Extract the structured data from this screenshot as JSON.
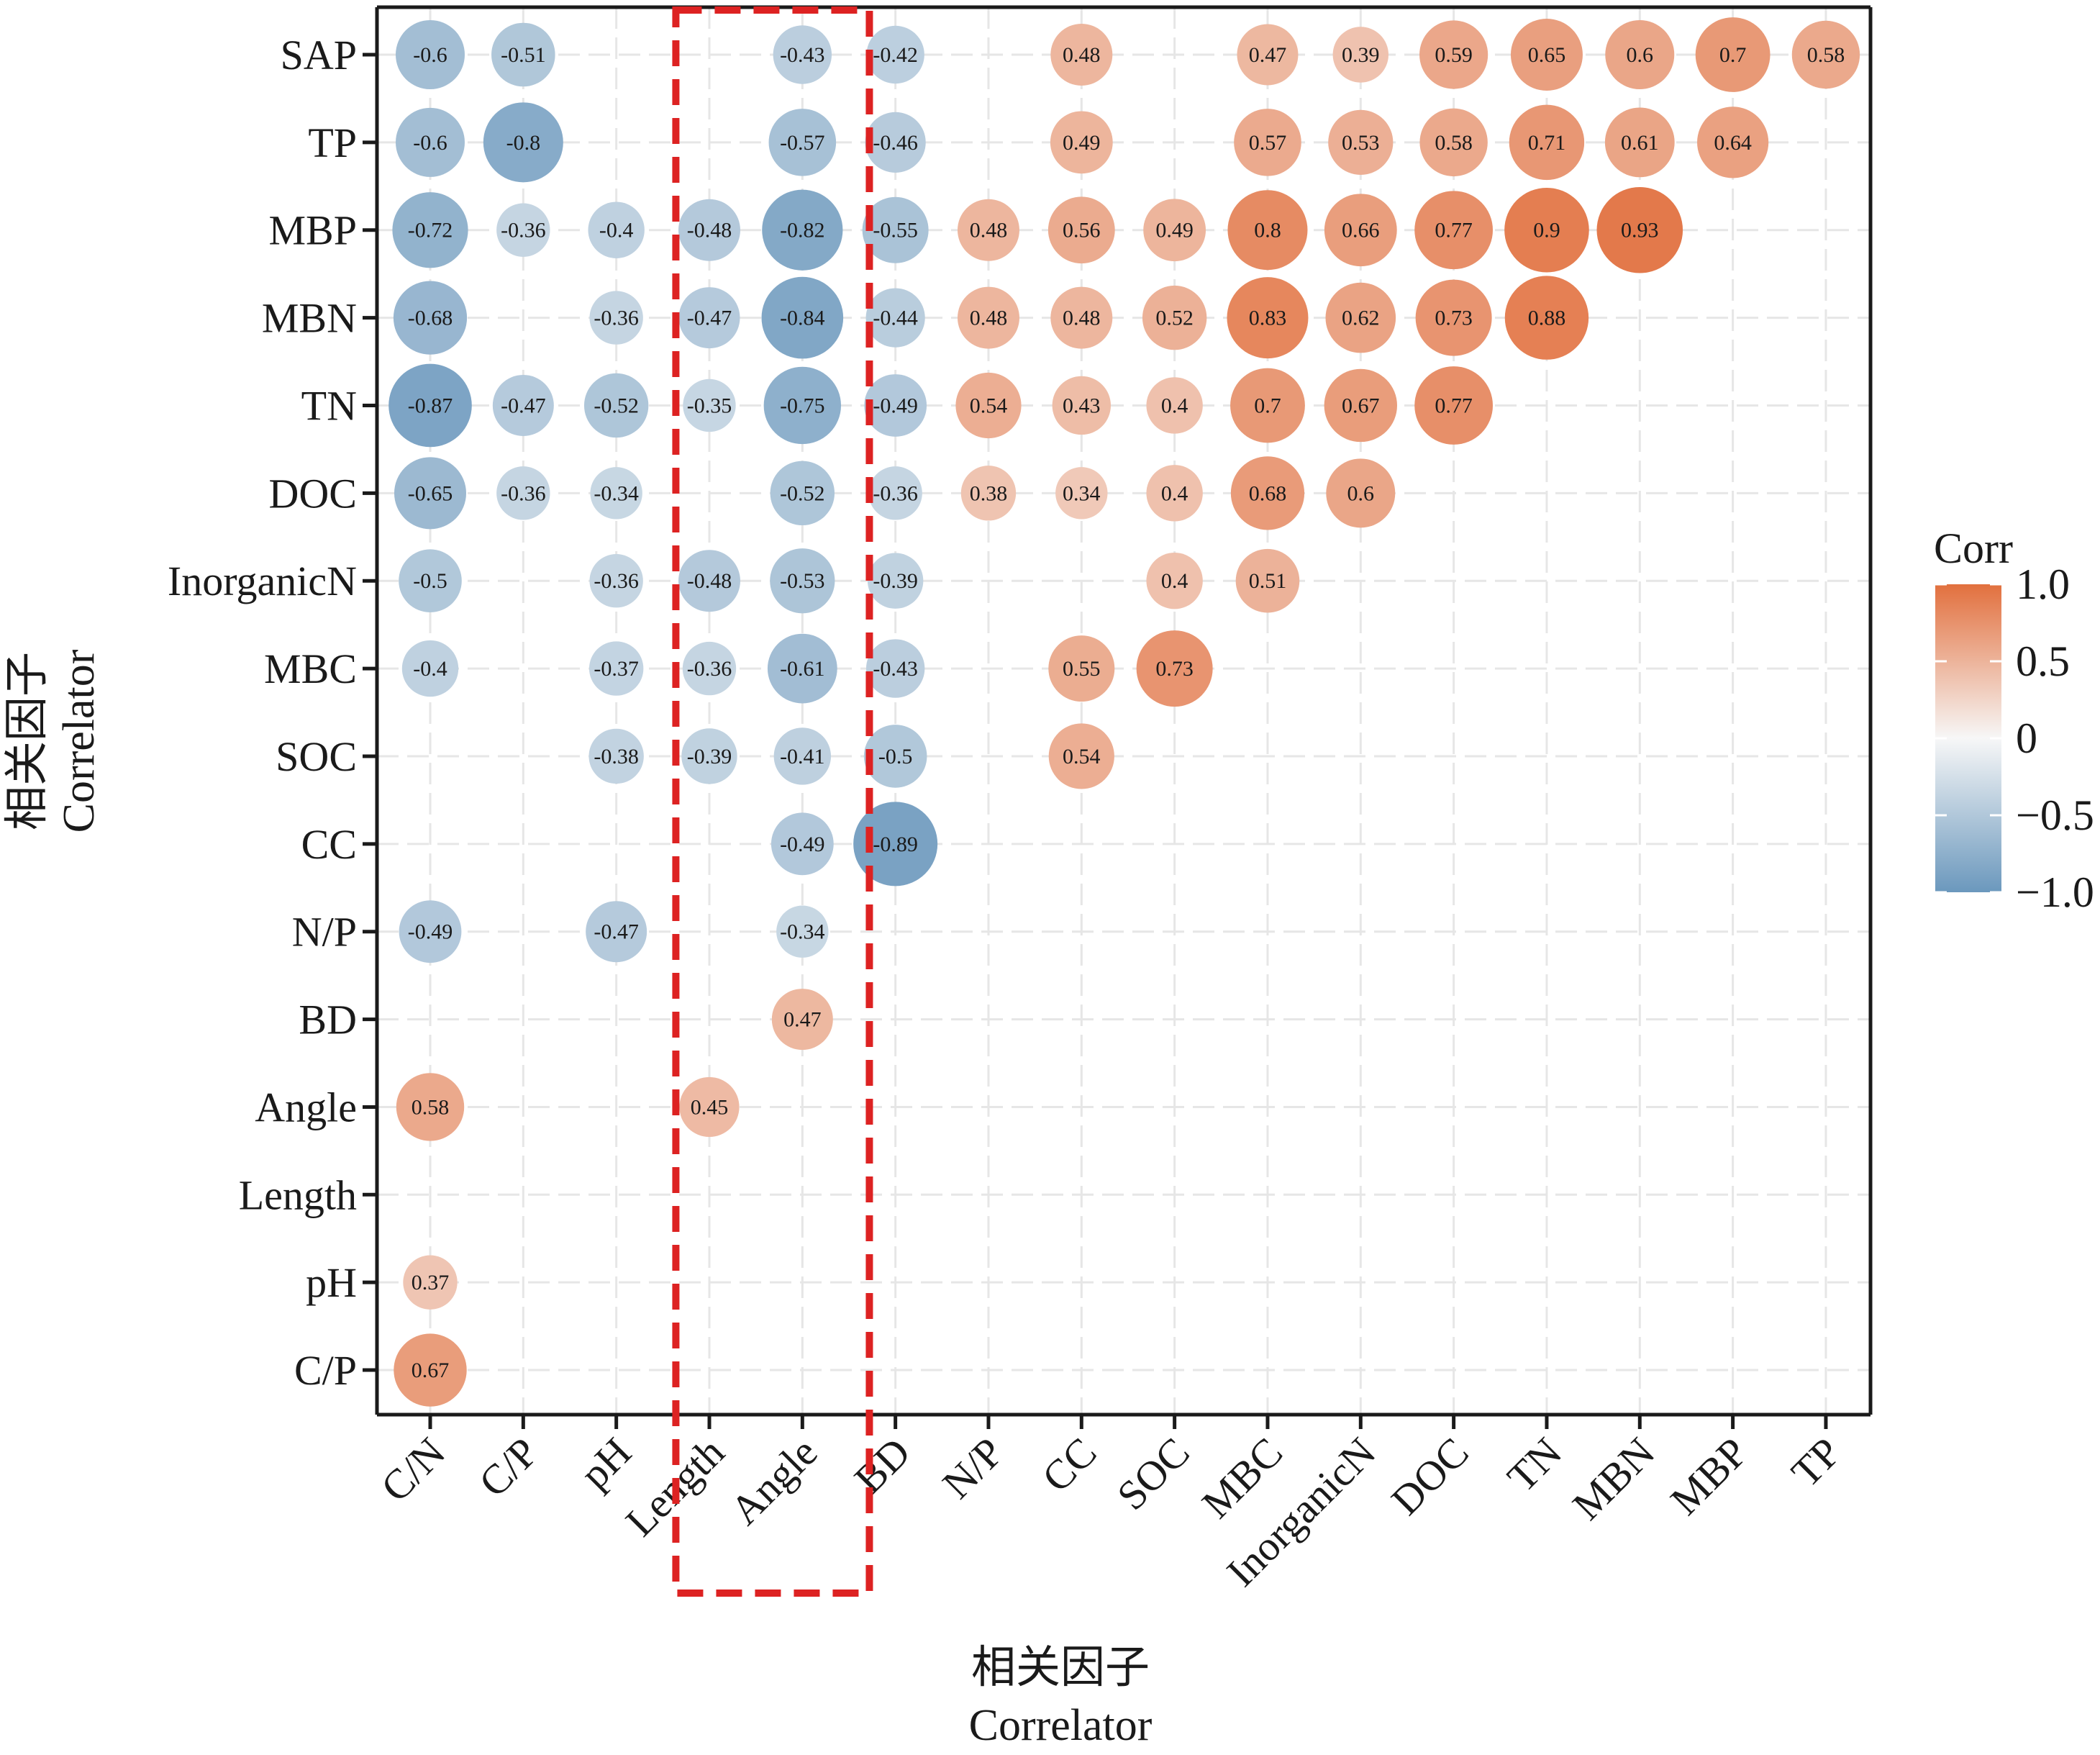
{
  "chart_data": {
    "type": "heatmap",
    "subtype": "correlation-bubble-lower-triangle",
    "x_categories": [
      "C/N",
      "C/P",
      "pH",
      "Length",
      "Angle",
      "BD",
      "N/P",
      "CC",
      "SOC",
      "MBC",
      "InorganicN",
      "DOC",
      "TN",
      "MBN",
      "MBP",
      "TP"
    ],
    "y_categories": [
      "SAP",
      "TP",
      "MBP",
      "MBN",
      "TN",
      "DOC",
      "InorganicN",
      "MBC",
      "SOC",
      "CC",
      "N/P",
      "BD",
      "Angle",
      "Length",
      "pH",
      "C/P"
    ],
    "values": [
      [
        -0.6,
        -0.51,
        null,
        null,
        -0.43,
        -0.42,
        null,
        0.48,
        null,
        0.47,
        0.39,
        0.59,
        0.65,
        0.6,
        0.7,
        0.58
      ],
      [
        -0.6,
        -0.8,
        null,
        null,
        -0.57,
        -0.46,
        null,
        0.49,
        null,
        0.57,
        0.53,
        0.58,
        0.71,
        0.61,
        0.64,
        null
      ],
      [
        -0.72,
        -0.36,
        -0.4,
        -0.48,
        -0.82,
        -0.55,
        0.48,
        0.56,
        0.49,
        0.8,
        0.66,
        0.77,
        0.9,
        0.93,
        null,
        null
      ],
      [
        -0.68,
        null,
        -0.36,
        -0.47,
        -0.84,
        -0.44,
        0.48,
        0.48,
        0.52,
        0.83,
        0.62,
        0.73,
        0.88,
        null,
        null,
        null
      ],
      [
        -0.87,
        -0.47,
        -0.52,
        -0.35,
        -0.75,
        -0.49,
        0.54,
        0.43,
        0.4,
        0.7,
        0.67,
        0.77,
        null,
        null,
        null,
        null
      ],
      [
        -0.65,
        -0.36,
        -0.34,
        null,
        -0.52,
        -0.36,
        0.38,
        0.34,
        0.4,
        0.68,
        0.6,
        null,
        null,
        null,
        null,
        null
      ],
      [
        -0.5,
        null,
        -0.36,
        -0.48,
        -0.53,
        -0.39,
        null,
        null,
        0.4,
        0.51,
        null,
        null,
        null,
        null,
        null,
        null
      ],
      [
        -0.4,
        null,
        -0.37,
        -0.36,
        -0.61,
        -0.43,
        null,
        0.55,
        0.73,
        null,
        null,
        null,
        null,
        null,
        null,
        null
      ],
      [
        null,
        null,
        -0.38,
        -0.39,
        -0.41,
        -0.5,
        null,
        0.54,
        null,
        null,
        null,
        null,
        null,
        null,
        null,
        null
      ],
      [
        null,
        null,
        null,
        null,
        -0.49,
        -0.89,
        null,
        null,
        null,
        null,
        null,
        null,
        null,
        null,
        null,
        null
      ],
      [
        -0.49,
        null,
        -0.47,
        null,
        -0.34,
        null,
        null,
        null,
        null,
        null,
        null,
        null,
        null,
        null,
        null,
        null
      ],
      [
        null,
        null,
        null,
        null,
        0.47,
        null,
        null,
        null,
        null,
        null,
        null,
        null,
        null,
        null,
        null,
        null
      ],
      [
        0.58,
        null,
        null,
        0.45,
        null,
        null,
        null,
        null,
        null,
        null,
        null,
        null,
        null,
        null,
        null,
        null
      ],
      [
        null,
        null,
        null,
        null,
        null,
        null,
        null,
        null,
        null,
        null,
        null,
        null,
        null,
        null,
        null,
        null
      ],
      [
        0.37,
        null,
        null,
        null,
        null,
        null,
        null,
        null,
        null,
        null,
        null,
        null,
        null,
        null,
        null,
        null
      ],
      [
        0.67,
        null,
        null,
        null,
        null,
        null,
        null,
        null,
        null,
        null,
        null,
        null,
        null,
        null,
        null,
        null
      ]
    ],
    "xlabel": [
      "相关因子",
      "Correlator"
    ],
    "ylabel": [
      "相关因子",
      "Correlator"
    ],
    "legend": {
      "title": "Corr",
      "placement": "right",
      "range": [
        -1.0,
        1.0
      ],
      "ticks": [
        1.0,
        0.5,
        0,
        -0.5,
        -1.0
      ],
      "tick_labels": [
        "1.0",
        "0.5",
        "0",
        "−0.5",
        "−1.0"
      ]
    },
    "colors": {
      "negative": "#6b98bd",
      "neutral": "#f7f7f7",
      "positive": "#e2703e",
      "highlight_box": "#dd2222",
      "grid": "#e6e6e6"
    },
    "highlight": {
      "style": "dashed-red-box",
      "columns": [
        "Length",
        "Angle"
      ]
    },
    "grid": true
  }
}
